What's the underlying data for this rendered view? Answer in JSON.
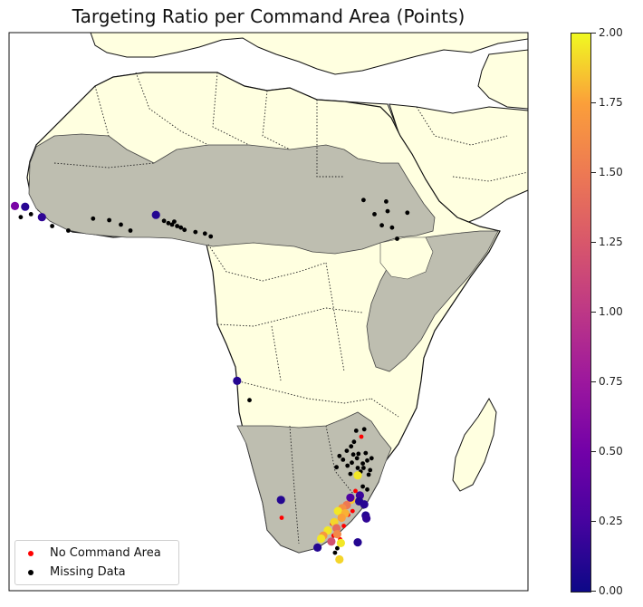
{
  "chart_data": {
    "type": "scatter",
    "title": "Targeting Ratio per Command Area (Points)",
    "colorbar": {
      "colormap": "plasma",
      "range": [
        0.0,
        2.0
      ],
      "ticks": [
        "0.00",
        "0.25",
        "0.50",
        "0.75",
        "1.00",
        "1.25",
        "1.50",
        "1.75",
        "2.00"
      ],
      "colors": [
        "#0d0887",
        "#46039f",
        "#7201a8",
        "#9c179e",
        "#bd3786",
        "#d8576b",
        "#ed7953",
        "#fb9f3a",
        "#f0f921"
      ]
    },
    "legend": {
      "position": "lower-left",
      "entries": [
        {
          "label": "No Command Area",
          "color": "#ff0000"
        },
        {
          "label": "Missing Data",
          "color": "#000000"
        }
      ]
    },
    "map_colors": {
      "ocean": "#ffffff",
      "land": "#ffffe0",
      "highlight": "#bebeb0"
    },
    "lon_range": [
      -18,
      53
    ],
    "lat_range": [
      -37,
      38
    ],
    "points_ratio": [
      {
        "lon": -17.2,
        "lat": 14.7,
        "value": 0.55
      },
      {
        "lon": -15.8,
        "lat": 14.6,
        "value": 0.12
      },
      {
        "lon": -13.5,
        "lat": 13.2,
        "value": 0.15
      },
      {
        "lon": 2.1,
        "lat": 13.5,
        "value": 0.1
      },
      {
        "lon": 13.2,
        "lat": -8.8,
        "value": 0.1
      },
      {
        "lon": 29.7,
        "lat": -21.5,
        "value": 1.95
      },
      {
        "lon": 28.8,
        "lat": -24.8,
        "value": 1.85
      },
      {
        "lon": 28.2,
        "lat": -25.5,
        "value": 1.5
      },
      {
        "lon": 27.6,
        "lat": -25.9,
        "value": 1.65
      },
      {
        "lon": 27.0,
        "lat": -26.3,
        "value": 1.95
      },
      {
        "lon": 28.0,
        "lat": -26.6,
        "value": 1.8
      },
      {
        "lon": 27.5,
        "lat": -27.2,
        "value": 1.75
      },
      {
        "lon": 26.5,
        "lat": -27.8,
        "value": 1.9
      },
      {
        "lon": 26.8,
        "lat": -28.6,
        "value": 1.4
      },
      {
        "lon": 25.6,
        "lat": -28.9,
        "value": 1.95
      },
      {
        "lon": 26.9,
        "lat": -29.4,
        "value": 1.6
      },
      {
        "lon": 25.0,
        "lat": -29.6,
        "value": 1.7
      },
      {
        "lon": 24.7,
        "lat": -30.0,
        "value": 1.95
      },
      {
        "lon": 26.1,
        "lat": -30.4,
        "value": 1.2
      },
      {
        "lon": 27.4,
        "lat": -30.6,
        "value": 1.95
      },
      {
        "lon": 27.2,
        "lat": -32.8,
        "value": 1.9
      },
      {
        "lon": 28.7,
        "lat": -24.5,
        "value": 0.3
      },
      {
        "lon": 30.0,
        "lat": -24.2,
        "value": 0.2
      },
      {
        "lon": 29.9,
        "lat": -25.0,
        "value": 0.1
      },
      {
        "lon": 30.6,
        "lat": -25.4,
        "value": 0.12
      },
      {
        "lon": 30.8,
        "lat": -26.9,
        "value": 0.1
      },
      {
        "lon": 30.9,
        "lat": -27.3,
        "value": 0.15
      },
      {
        "lon": 29.7,
        "lat": -30.5,
        "value": 0.1
      },
      {
        "lon": 24.2,
        "lat": -31.2,
        "value": 0.1
      },
      {
        "lon": 19.2,
        "lat": -24.8,
        "value": 0.1
      }
    ],
    "points_no_command_area": [
      {
        "lon": 29.4,
        "lat": -23.6
      },
      {
        "lon": 29.0,
        "lat": -26.3
      },
      {
        "lon": 28.4,
        "lat": -26.8
      },
      {
        "lon": 27.8,
        "lat": -28.3
      },
      {
        "lon": 26.2,
        "lat": -28.0
      },
      {
        "lon": 26.4,
        "lat": -29.6
      },
      {
        "lon": 27.3,
        "lat": -30.1
      },
      {
        "lon": 19.3,
        "lat": -27.2
      },
      {
        "lon": 30.2,
        "lat": -16.3
      }
    ],
    "points_missing_data": [
      {
        "lon": -15.0,
        "lat": 13.6
      },
      {
        "lon": -16.4,
        "lat": 13.2
      },
      {
        "lon": -12.1,
        "lat": 12.0
      },
      {
        "lon": -6.5,
        "lat": 13.0
      },
      {
        "lon": -4.3,
        "lat": 12.8
      },
      {
        "lon": -2.7,
        "lat": 12.2
      },
      {
        "lon": -1.4,
        "lat": 11.4
      },
      {
        "lon": -9.9,
        "lat": 11.4
      },
      {
        "lon": 3.2,
        "lat": 12.7
      },
      {
        "lon": 3.8,
        "lat": 12.4
      },
      {
        "lon": 4.6,
        "lat": 12.6
      },
      {
        "lon": 5.0,
        "lat": 12.0
      },
      {
        "lon": 5.5,
        "lat": 11.8
      },
      {
        "lon": 6.0,
        "lat": 11.5
      },
      {
        "lon": 7.5,
        "lat": 11.2
      },
      {
        "lon": 8.8,
        "lat": 11.0
      },
      {
        "lon": 9.6,
        "lat": 10.6
      },
      {
        "lon": 4.3,
        "lat": 12.2
      },
      {
        "lon": 30.5,
        "lat": 15.5
      },
      {
        "lon": 33.6,
        "lat": 15.3
      },
      {
        "lon": 32.0,
        "lat": 13.6
      },
      {
        "lon": 33.8,
        "lat": 14.0
      },
      {
        "lon": 33.0,
        "lat": 12.1
      },
      {
        "lon": 34.4,
        "lat": 11.8
      },
      {
        "lon": 35.1,
        "lat": 10.3
      },
      {
        "lon": 36.5,
        "lat": 13.8
      },
      {
        "lon": 14.9,
        "lat": -11.4
      },
      {
        "lon": 29.5,
        "lat": -15.5
      },
      {
        "lon": 30.6,
        "lat": -15.3
      },
      {
        "lon": 29.2,
        "lat": -17.0
      },
      {
        "lon": 28.8,
        "lat": -17.6
      },
      {
        "lon": 28.2,
        "lat": -18.2
      },
      {
        "lon": 29.1,
        "lat": -18.7
      },
      {
        "lon": 29.8,
        "lat": -18.6
      },
      {
        "lon": 30.8,
        "lat": -18.5
      },
      {
        "lon": 29.6,
        "lat": -19.2
      },
      {
        "lon": 28.9,
        "lat": -19.8
      },
      {
        "lon": 30.4,
        "lat": -19.9
      },
      {
        "lon": 31.0,
        "lat": -19.5
      },
      {
        "lon": 31.6,
        "lat": -19.2
      },
      {
        "lon": 27.7,
        "lat": -19.4
      },
      {
        "lon": 27.2,
        "lat": -18.9
      },
      {
        "lon": 30.5,
        "lat": -20.5
      },
      {
        "lon": 31.4,
        "lat": -20.8
      },
      {
        "lon": 29.7,
        "lat": -20.5
      },
      {
        "lon": 28.3,
        "lat": -20.2
      },
      {
        "lon": 26.8,
        "lat": -20.4
      },
      {
        "lon": 30.1,
        "lat": -21.0
      },
      {
        "lon": 31.2,
        "lat": -21.4
      },
      {
        "lon": 28.7,
        "lat": -21.3
      },
      {
        "lon": 31.0,
        "lat": -23.4
      },
      {
        "lon": 30.4,
        "lat": -23.0
      },
      {
        "lon": 30.5,
        "lat": -25.7
      },
      {
        "lon": 26.6,
        "lat": -31.9
      },
      {
        "lon": 26.9,
        "lat": -31.3
      }
    ]
  }
}
